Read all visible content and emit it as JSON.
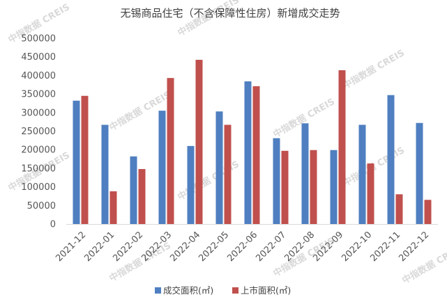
{
  "chart_data": {
    "type": "bar",
    "title": "无锡商品住宅（不含保障性住房）新增成交走势",
    "categories": [
      "2021-12",
      "2022-01",
      "2022-02",
      "2022-03",
      "2022-04",
      "2022-05",
      "2022-06",
      "2022-07",
      "2022-08",
      "2022-09",
      "2022-10",
      "2022-11",
      "2022-12"
    ],
    "series": [
      {
        "name": "成交面积(㎡)",
        "color": "#4f7fc0",
        "values": [
          332000,
          267000,
          182000,
          305000,
          210000,
          303000,
          384000,
          231000,
          271000,
          199000,
          267000,
          347000,
          272000
        ]
      },
      {
        "name": "上市面积(㎡)",
        "color": "#c0504d",
        "values": [
          345000,
          88000,
          148000,
          393000,
          442000,
          267000,
          371000,
          197000,
          199000,
          414000,
          163000,
          80000,
          65000
        ]
      }
    ],
    "yticks": [
      "0",
      "50000",
      "100000",
      "150000",
      "200000",
      "250000",
      "300000",
      "350000",
      "400000",
      "450000",
      "500000"
    ],
    "ylim": [
      0,
      500000
    ],
    "xlabel": "",
    "ylabel": "",
    "grid": false,
    "legend_position": "bottom"
  },
  "watermark": "中指数据 CREIS"
}
